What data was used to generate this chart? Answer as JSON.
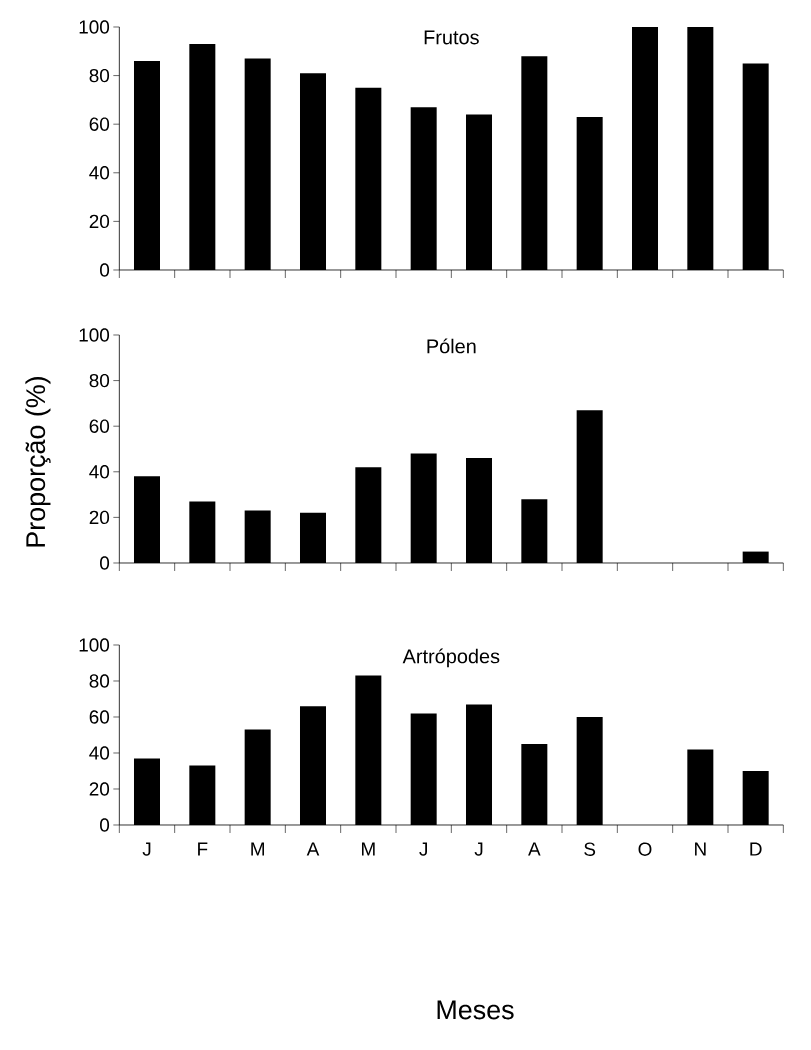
{
  "chart_data": [
    {
      "type": "bar",
      "title": "Frutos",
      "categories": [
        null,
        null,
        null,
        null,
        null,
        null,
        null,
        null,
        null,
        null,
        null,
        null
      ],
      "values": [
        86,
        93,
        87,
        81,
        75,
        67,
        64,
        88,
        63,
        100,
        100,
        85
      ],
      "color": "#000000",
      "ylim": [
        0,
        100
      ],
      "yticks": [
        0,
        20,
        40,
        60,
        80,
        100
      ],
      "tick_labels": "y"
    },
    {
      "type": "bar",
      "title": "Pólen",
      "ylabel": "Proporção (%)",
      "categories": [
        null,
        null,
        null,
        null,
        null,
        null,
        null,
        null,
        null,
        null,
        null,
        null
      ],
      "values": [
        38,
        27,
        23,
        22,
        42,
        48,
        46,
        28,
        67,
        0,
        0,
        5
      ],
      "color": "#000000",
      "ylim": [
        0,
        100
      ],
      "yticks": [
        0,
        20,
        40,
        60,
        80,
        100
      ],
      "tick_labels": "y"
    },
    {
      "type": "bar",
      "title": "Artrópodes",
      "xlabel": "Meses",
      "categories": [
        "J",
        "F",
        "M",
        "A",
        "M",
        "J",
        "J",
        "A",
        "S",
        "O",
        "N",
        "D"
      ],
      "values": [
        37,
        33,
        53,
        66,
        83,
        62,
        67,
        45,
        60,
        0,
        42,
        30
      ],
      "color": "#000000",
      "ylim": [
        0,
        100
      ],
      "yticks": [
        0,
        20,
        40,
        60,
        80,
        100
      ]
    }
  ]
}
